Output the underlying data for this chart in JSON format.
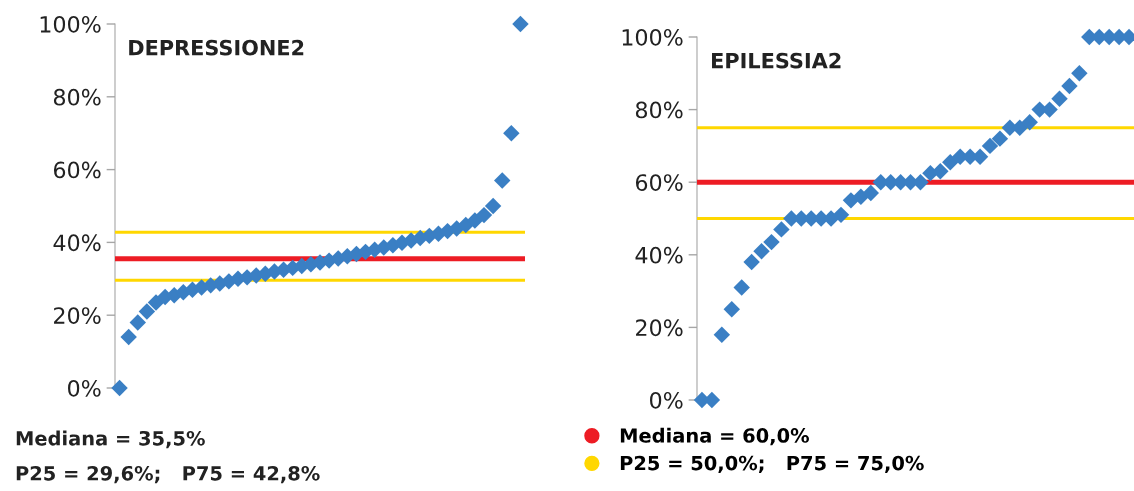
{
  "chart_data": [
    {
      "type": "scatter",
      "title": "DEPRESSIONE2",
      "marker": "diamond",
      "tick_labels": "y",
      "grid": false,
      "categories": [
        null,
        null,
        null,
        null,
        null,
        null,
        null,
        null,
        null,
        null,
        null,
        null,
        null,
        null,
        null,
        null,
        null,
        null,
        null,
        null,
        null,
        null,
        null,
        null,
        null,
        null,
        null,
        null,
        null,
        null,
        null,
        null,
        null,
        null,
        null,
        null,
        null,
        null,
        null,
        null,
        null,
        null,
        null,
        null,
        null
      ],
      "series": [
        {
          "color": "#3a7fc4",
          "values": [
            0,
            14,
            18,
            21,
            23.5,
            25,
            25.5,
            26.3,
            27,
            27.6,
            28.2,
            28.7,
            29.3,
            30,
            30.4,
            30.9,
            31.4,
            32,
            32.5,
            33,
            33.5,
            34,
            34.5,
            35,
            35.6,
            36.2,
            36.8,
            37.4,
            38,
            38.6,
            39.2,
            39.9,
            40.5,
            41.2,
            41.8,
            42.4,
            43.1,
            43.8,
            44.8,
            46,
            47.5,
            50,
            57,
            70,
            100
          ]
        }
      ],
      "ylim": [
        0,
        100
      ],
      "yticks": [
        {
          "value": 0,
          "label": "0%"
        },
        {
          "value": 20,
          "label": "20%"
        },
        {
          "value": 40,
          "label": "40%"
        },
        {
          "value": 60,
          "label": "60%"
        },
        {
          "value": 80,
          "label": "80%"
        },
        {
          "value": 100,
          "label": "100%"
        }
      ],
      "ref_lines": [
        {
          "axis": "y",
          "value": 35.5,
          "color": "#ed1c24"
        },
        {
          "axis": "y",
          "value": 29.6,
          "color": "#ffd700"
        },
        {
          "axis": "y",
          "value": 42.8,
          "color": "#ffd700"
        }
      ],
      "annotations": [
        "Mediana = 35,5%",
        "P25 = 29,6%;   P75 = 42,8%"
      ]
    },
    {
      "type": "scatter",
      "title": "EPILESSIA2",
      "marker": "diamond",
      "tick_labels": "y",
      "grid": false,
      "legend": "bottom",
      "categories": [
        null,
        null,
        null,
        null,
        null,
        null,
        null,
        null,
        null,
        null,
        null,
        null,
        null,
        null,
        null,
        null,
        null,
        null,
        null,
        null,
        null,
        null,
        null,
        null,
        null,
        null,
        null,
        null,
        null,
        null,
        null,
        null,
        null,
        null,
        null,
        null,
        null,
        null,
        null,
        null,
        null,
        null,
        null,
        null
      ],
      "series": [
        {
          "color": "#3a7fc4",
          "values": [
            0,
            0,
            18,
            25,
            31,
            38,
            41,
            43.5,
            47,
            50,
            50,
            50,
            50,
            50,
            51,
            55,
            56,
            57,
            60,
            60,
            60,
            60,
            60,
            62.5,
            63,
            65.5,
            67,
            67,
            67,
            70,
            72,
            75,
            75,
            76.5,
            80,
            80,
            83,
            86.5,
            90,
            100,
            100,
            100,
            100,
            100
          ]
        }
      ],
      "ylim": [
        0,
        100
      ],
      "yticks": [
        {
          "value": 0,
          "label": "0%"
        },
        {
          "value": 20,
          "label": "20%"
        },
        {
          "value": 40,
          "label": "40%"
        },
        {
          "value": 60,
          "label": "60%"
        },
        {
          "value": 80,
          "label": "80%"
        },
        {
          "value": 100,
          "label": "100%"
        }
      ],
      "ref_lines": [
        {
          "axis": "y",
          "value": 60,
          "color": "#ed1c24",
          "label": "Mediana = 60,0%"
        },
        {
          "axis": "y",
          "value": 50,
          "color": "#ffd700",
          "label": "P25 = 50,0%;   P75 = 75,0%"
        },
        {
          "axis": "y",
          "value": 75,
          "color": "#ffd700"
        }
      ]
    }
  ]
}
